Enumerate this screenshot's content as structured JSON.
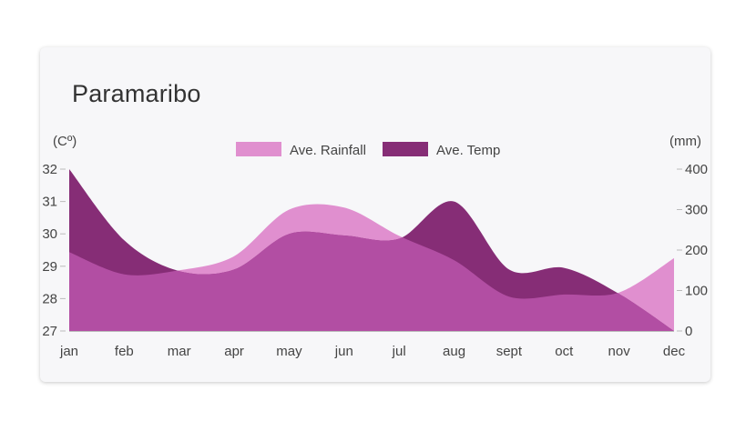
{
  "card": {
    "title": "Paramaribo"
  },
  "chart_data": {
    "type": "area",
    "title": "Paramaribo",
    "categories": [
      "jan",
      "feb",
      "mar",
      "apr",
      "may",
      "jun",
      "jul",
      "aug",
      "sept",
      "oct",
      "nov",
      "dec"
    ],
    "y_left": {
      "unit_label": "(Cº)",
      "range": [
        27,
        32
      ],
      "ticks": [
        27,
        28,
        29,
        30,
        31,
        32
      ]
    },
    "y_right": {
      "unit_label": "(mm)",
      "range": [
        0,
        400
      ],
      "ticks": [
        0,
        100,
        200,
        300,
        400
      ]
    },
    "legend": {
      "placement": "top-center"
    },
    "grid": false,
    "series": [
      {
        "name": "Ave. Rainfall",
        "axis": "right",
        "color": "#e08fcf",
        "values": [
          195,
          140,
          150,
          185,
          300,
          305,
          235,
          175,
          85,
          90,
          95,
          180
        ]
      },
      {
        "name": "Ave. Temp",
        "axis": "left",
        "color": "#862d76",
        "values": [
          32,
          29.8,
          28.85,
          28.9,
          30.0,
          29.95,
          29.85,
          31.0,
          28.9,
          28.95,
          28.15,
          27.0
        ]
      }
    ],
    "overlap_color": "#b24ea3"
  }
}
